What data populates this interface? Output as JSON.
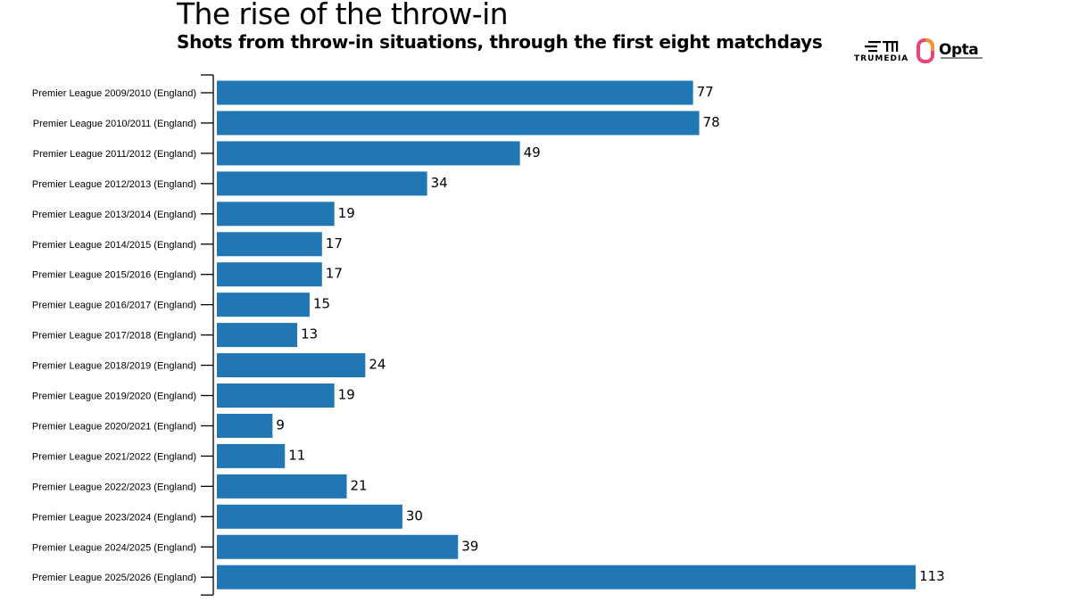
{
  "header": {
    "title": "The rise of the throw-in",
    "subtitle": "Shots from throw-in situations, through the first eight matchdays"
  },
  "logos": {
    "trumedia_word": "TRUMEDIA",
    "opta_word": "Opta",
    "opta_colors": [
      "#e8477c",
      "#f39a2e"
    ]
  },
  "colors": {
    "bar": "#2077b4",
    "axis": "#000000",
    "text": "#000000"
  },
  "chart_data": {
    "type": "bar",
    "orientation": "horizontal",
    "title": "The rise of the throw-in",
    "subtitle": "Shots from throw-in situations, through the first eight matchdays",
    "xlabel": "",
    "ylabel": "",
    "xlim": [
      0,
      113
    ],
    "grid": false,
    "data_labels": true,
    "categories": [
      "Premier League 2009/2010 (England)",
      "Premier League 2010/2011 (England)",
      "Premier League 2011/2012 (England)",
      "Premier League 2012/2013 (England)",
      "Premier League 2013/2014 (England)",
      "Premier League 2014/2015 (England)",
      "Premier League 2015/2016 (England)",
      "Premier League 2016/2017 (England)",
      "Premier League 2017/2018 (England)",
      "Premier League 2018/2019 (England)",
      "Premier League 2019/2020 (England)",
      "Premier League 2020/2021 (England)",
      "Premier League 2021/2022 (England)",
      "Premier League 2022/2023 (England)",
      "Premier League 2023/2024 (England)",
      "Premier League 2024/2025 (England)",
      "Premier League 2025/2026 (England)"
    ],
    "values": [
      77,
      78,
      49,
      34,
      19,
      17,
      17,
      15,
      13,
      24,
      19,
      9,
      11,
      21,
      30,
      39,
      113
    ]
  }
}
